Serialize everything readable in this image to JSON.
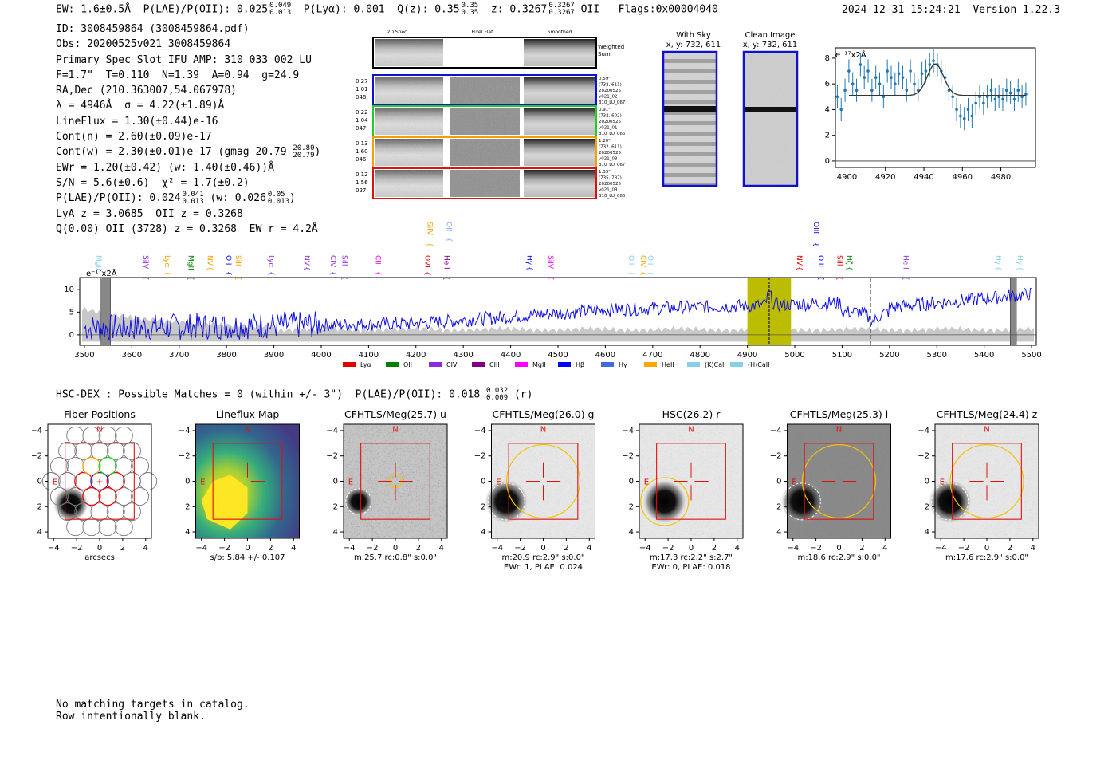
{
  "header": {
    "summary": "EW: 1.6±0.5Å  P(LAE)/P(OII): 0.025  P(Lyα): 0.001  Q(z): 0.35  z: 0.3267  OII   Flags:0x00004040",
    "pre_sup1": "EW: 1.6±0.5Å  P(LAE)/P(OII): 0.025",
    "sup1_hi": "0.049",
    "sup1_lo": "0.013",
    "mid_a": "  P(Lyα): 0.001  Q(z): 0.35",
    "sup2_hi": "0.35",
    "sup2_lo": "0.35",
    "mid_b": "  z: 0.3267",
    "sup3_hi": "0.3267",
    "sup3_lo": "0.3267",
    "tail": " OII   Flags:0x00004040",
    "timestamp": "2024-12-31 15:24:21  Version 1.22.3"
  },
  "info": {
    "l1": "ID: 3008459864 (3008459864.pdf)",
    "l2": "Obs: 20200525v021_3008459864",
    "l3": "Primary Spec_Slot_IFU_AMP: 310_033_002_LU",
    "l4": "F=1.7\"  T=0.110  N=1.39  A=0.94  g=24.9",
    "l5": "RA,Dec (210.363007,54.067978)",
    "l6": "λ = 4946Å  σ = 4.22(±1.89)Å",
    "l7": "LineFlux = 1.30(±0.44)e-16",
    "l8": "Cont(n) = 2.60(±0.09)e-17",
    "l9": "Cont(w) = 2.30(±0.01)e-17 (gmag 20.79",
    "l9_hi": "20.80",
    "l9_lo": "20.79",
    "l9_end": ")",
    "l10": "EWr = 1.20(±0.42) (w: 1.40(±0.46))Å",
    "l11": "S/N = 5.6(±0.6)  χ² = 1.7(±0.2)",
    "l12": "P(LAE)/P(OII): 0.024",
    "l12_hi": "0.041",
    "l12_lo": "0.013",
    "l12_mid": " (w: 0.026",
    "l12_hi2": "0.05",
    "l12_lo2": "0.013",
    "l12_end": ")",
    "l13": "LyA z = 3.0685  OII z = 0.3268",
    "l14": "Q(0.00) OII (3728) z = 0.3268  EW r = 4.2Å"
  },
  "cutouts": {
    "col_2d": "2D Spec",
    "col_flat": "Pixel Flat",
    "col_smooth": "Smoothed",
    "weighted": "Weighted",
    "sum": "Sum",
    "rows": [
      {
        "color": "#1010d0",
        "left": [
          "0.27",
          "1.01",
          "046"
        ],
        "right": [
          "0.59\"",
          "(732, 611)",
          "20200525",
          "v021_02",
          "310_LU_067"
        ]
      },
      {
        "color": "#22cc22",
        "left": [
          "0.22",
          "1.04",
          "047"
        ],
        "right": [
          "0.91\"",
          "(732, 602)",
          "20200525",
          "v021_01",
          "310_LU_066"
        ]
      },
      {
        "color": "#f5a000",
        "left": [
          "0.13",
          "1.60",
          "046"
        ],
        "right": [
          "1.20\"",
          "(732, 611)",
          "20200525",
          "v021_03",
          "310_LU_067"
        ]
      },
      {
        "color": "#e01010",
        "left": [
          "0.12",
          "1.56",
          "027"
        ],
        "right": [
          "1.33\"",
          "(735, 787)",
          "20200525",
          "v021_03",
          "310_LU_086"
        ]
      }
    ]
  },
  "sky": {
    "with_sky_t1": "With Sky",
    "with_sky_t2": "x, y: 732, 611",
    "clean_t1": "Clean Image",
    "clean_t2": "x, y: 732, 611"
  },
  "zoom_chart": {
    "chart_data": {
      "type": "scatter",
      "ylabel": "e⁻¹⁷x2Å",
      "xlim": [
        4894,
        4998
      ],
      "ylim": [
        -0.5,
        8.8
      ],
      "xticks": [
        4900,
        4920,
        4940,
        4960,
        4980
      ],
      "yticks": [
        0,
        2,
        4,
        6,
        8
      ],
      "points_x": [
        4895,
        4897,
        4899,
        4901,
        4903,
        4905,
        4907,
        4909,
        4911,
        4913,
        4915,
        4917,
        4919,
        4921,
        4923,
        4925,
        4927,
        4929,
        4931,
        4933,
        4935,
        4937,
        4939,
        4941,
        4943,
        4945,
        4947,
        4949,
        4951,
        4953,
        4955,
        4957,
        4959,
        4961,
        4963,
        4965,
        4967,
        4969,
        4971,
        4973,
        4975,
        4977,
        4979,
        4981,
        4983,
        4985,
        4987,
        4989,
        4991,
        4993
      ],
      "points_y": [
        5.0,
        4.0,
        5.5,
        7.0,
        6.0,
        5.5,
        7.5,
        6.5,
        7.0,
        5.5,
        6.5,
        6.0,
        5.0,
        7.0,
        6.5,
        6.0,
        6.8,
        6.5,
        5.5,
        7.0,
        6.0,
        5.5,
        6.8,
        7.0,
        7.5,
        7.8,
        7.5,
        7.0,
        6.5,
        5.5,
        5.0,
        4.0,
        3.5,
        3.3,
        4.0,
        3.5,
        4.5,
        5.0,
        4.5,
        5.0,
        5.5,
        4.8,
        5.0,
        4.8,
        5.5,
        5.3,
        4.8,
        5.5,
        5.0,
        5.2
      ],
      "fit_base": 5.1,
      "fit_amp": 2.45,
      "fit_center": 4946,
      "fit_sigma": 4.22
    }
  },
  "full_spectrum": {
    "chart_data": {
      "type": "line",
      "ylabel": "e⁻¹⁷x2Å",
      "xlim": [
        3490,
        5510
      ],
      "ylim": [
        -2.3,
        12.6
      ],
      "xticks": [
        3500,
        3600,
        3700,
        3800,
        3900,
        4000,
        4100,
        4200,
        4300,
        4400,
        4500,
        4600,
        4700,
        4800,
        4900,
        5000,
        5100,
        5200,
        5300,
        5400,
        5500
      ],
      "yticks": [
        0,
        5,
        10
      ],
      "highlight_band": [
        4900,
        4992
      ],
      "line_marker": 4946,
      "dashed_marker": 5160,
      "masked_bands": [
        [
          3535,
          3555
        ],
        [
          5455,
          5468
        ]
      ],
      "legend": [
        {
          "label": "Lyα",
          "color": "#e00000"
        },
        {
          "label": "OII",
          "color": "#008000"
        },
        {
          "label": "CIV",
          "color": "#8a2be2"
        },
        {
          "label": "CIII",
          "color": "#800080"
        },
        {
          "label": "MgII",
          "color": "#ff00ff"
        },
        {
          "label": "Hβ",
          "color": "#0000ff"
        },
        {
          "label": "Hγ",
          "color": "#4169e1"
        },
        {
          "label": "HeII",
          "color": "#ffa500"
        },
        {
          "label": "(K)CaII",
          "color": "#87ceeb"
        },
        {
          "label": "(H)CaII",
          "color": "#87ceeb"
        }
      ],
      "lines_top": [
        {
          "label": "SiIV",
          "x": 4220,
          "color": "#f5a000"
        },
        {
          "label": "OII",
          "x": 4260,
          "color": "#7fa0ff"
        },
        {
          "label": "OIII",
          "x": 5035,
          "color": "#0000ee"
        }
      ],
      "lines_mid": [
        {
          "label": "MgII",
          "x": 3520,
          "color": "#87ceeb"
        },
        {
          "label": "SiIV",
          "x": 3620,
          "color": "#8a2be2"
        },
        {
          "label": "Lyα",
          "x": 3665,
          "color": "#f5a000"
        },
        {
          "label": "MgII",
          "x": 3715,
          "color": "#008000"
        },
        {
          "label": "NV",
          "x": 3755,
          "color": "#f5a000"
        },
        {
          "label": "OII",
          "x": 3795,
          "color": "#0000ee"
        },
        {
          "label": "SiII",
          "x": 3815,
          "color": "#f5a000"
        },
        {
          "label": "Lyα",
          "x": 3885,
          "color": "#8a2be2"
        },
        {
          "label": "NV",
          "x": 3960,
          "color": "#8a2be2"
        },
        {
          "label": "CIV",
          "x": 4015,
          "color": "#8a2be2"
        },
        {
          "label": "SiII",
          "x": 4040,
          "color": "#8a2be2"
        },
        {
          "label": "CII",
          "x": 4110,
          "color": "#ff00ff"
        },
        {
          "label": "OVI",
          "x": 4215,
          "color": "#e00000"
        },
        {
          "label": "HeII",
          "x": 4255,
          "color": "#800080"
        },
        {
          "label": "Hγ",
          "x": 4430,
          "color": "#0000ee"
        },
        {
          "label": "SiIV",
          "x": 4475,
          "color": "#ff00ff"
        },
        {
          "label": "OII",
          "x": 4645,
          "color": "#87ceeb"
        },
        {
          "label": "CIV",
          "x": 4670,
          "color": "#f5a000"
        },
        {
          "label": "OII",
          "x": 4685,
          "color": "#87ceeb"
        },
        {
          "label": "NV",
          "x": 5000,
          "color": "#e00000"
        },
        {
          "label": "OIII",
          "x": 5045,
          "color": "#0000ee"
        },
        {
          "label": "SiII",
          "x": 5085,
          "color": "#e00000"
        },
        {
          "label": "Hζ",
          "x": 5105,
          "color": "#008000"
        },
        {
          "label": "HeII",
          "x": 5225,
          "color": "#8a2be2"
        },
        {
          "label": "Hγ",
          "x": 5420,
          "color": "#87ceeb"
        },
        {
          "label": "Hγ",
          "x": 5465,
          "color": "#87ceeb"
        }
      ]
    }
  },
  "hsc": {
    "line": "HSC-DEX : Possible Matches = 0 (within +/- 3\")  P(LAE)/P(OII): 0.018",
    "hi": "0.032",
    "lo": "0.009",
    "end": " (r)"
  },
  "imaging": {
    "ticks": [
      "−4",
      "−2",
      "0",
      "2",
      "4"
    ],
    "north": "N",
    "east": "E",
    "panels": [
      {
        "title": "Fiber Positions",
        "cap1": "arcsecs",
        "cap2": ""
      },
      {
        "title": "Lineflux Map",
        "cap1": "s/b: 5.84 +/- 0.107",
        "cap2": ""
      },
      {
        "title": "CFHTLS/Meg(25.7) u",
        "cap1": "m:25.7 rc:0.8\"  s:0.0\"",
        "cap2": ""
      },
      {
        "title": "CFHTLS/Meg(26.0) g",
        "cap1": "m:20.9 rc:2.9\"  s:0.0\"",
        "cap2": "EWr: 1, PLAE: 0.024"
      },
      {
        "title": "HSC(26.2) r",
        "cap1": "m:17.3  rc:2.2\"  s:2.7\"",
        "cap2": "EWr: 0, PLAE: 0.018"
      },
      {
        "title": "CFHTLS/Meg(25.3) i",
        "cap1": "m:18.6 rc:2.9\"  s:0.0\"",
        "cap2": ""
      },
      {
        "title": "CFHTLS/Meg(24.4) z",
        "cap1": "m:17.6 rc:2.9\"  s:0.0\"",
        "cap2": ""
      }
    ]
  },
  "footer": {
    "l1": "No matching targets in catalog.",
    "l2": "Row intentionally blank."
  }
}
